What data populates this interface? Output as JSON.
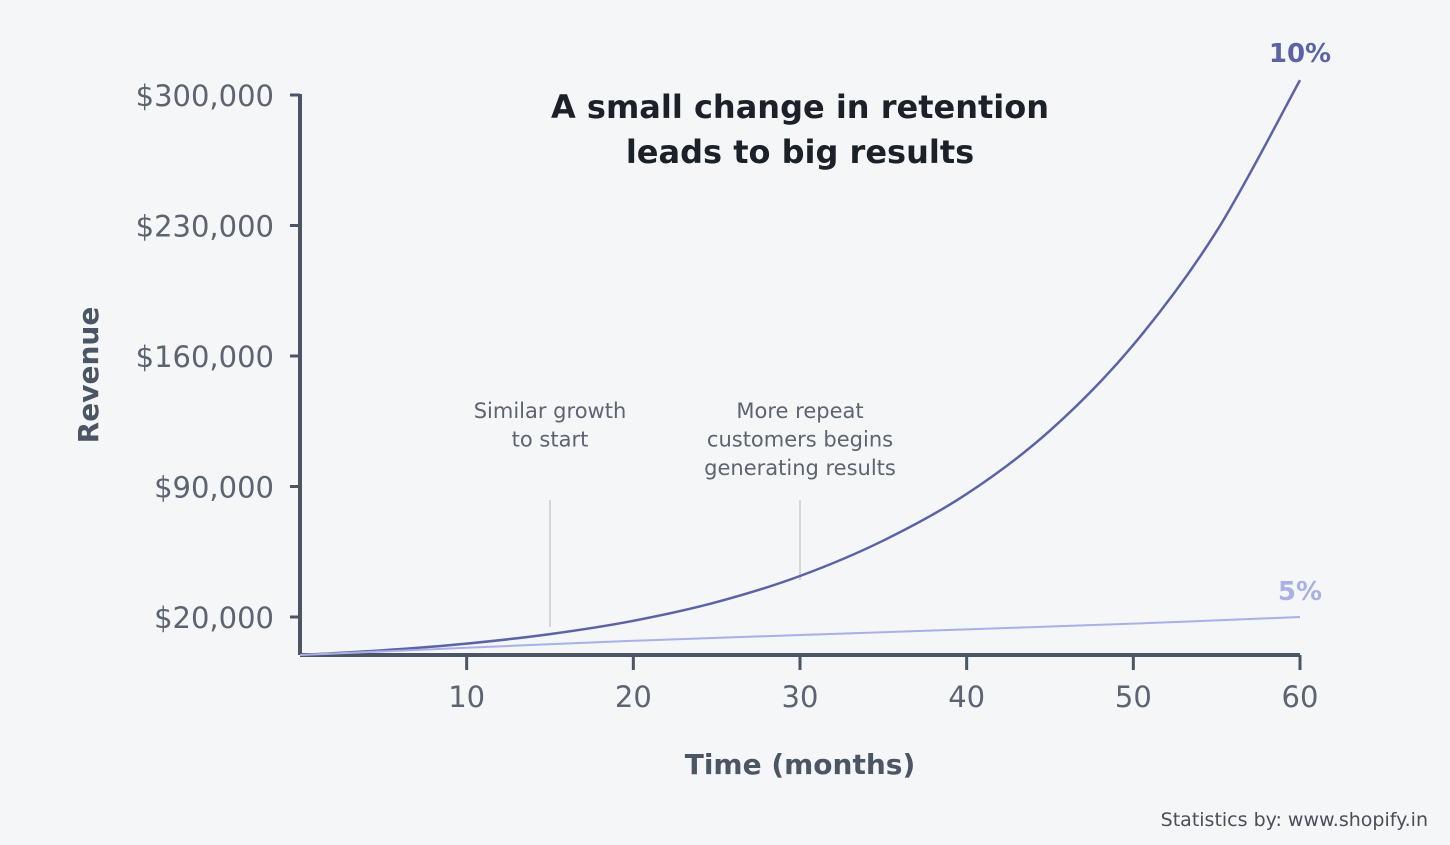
{
  "chart_data": {
    "type": "line",
    "title_lines": [
      "A small change in retention",
      "leads to big results"
    ],
    "xlabel": "Time (months)",
    "ylabel": "Revenue",
    "x_ticks": [
      10,
      20,
      30,
      40,
      50,
      60
    ],
    "y_ticks": [
      20000,
      90000,
      160000,
      230000,
      300000
    ],
    "y_tick_labels": [
      "$20,000",
      "$90,000",
      "$160,000",
      "$230,000",
      "$300,000"
    ],
    "xlim": [
      0,
      60
    ],
    "ylim": [
      0,
      300000
    ],
    "grid": false,
    "series": [
      {
        "name": "10%",
        "color": "#5b62a6",
        "x": [
          0,
          5,
          10,
          15,
          20,
          25,
          30,
          35,
          40,
          45,
          50,
          55,
          60
        ],
        "y": [
          0,
          2500,
          6000,
          11000,
          18000,
          28000,
          42000,
          61000,
          86000,
          120000,
          166000,
          227000,
          308000
        ]
      },
      {
        "name": "5%",
        "color": "#aab0e6",
        "x": [
          0,
          10,
          20,
          30,
          40,
          50,
          60
        ],
        "y": [
          0,
          3800,
          7500,
          10500,
          13500,
          16500,
          20000
        ]
      }
    ],
    "annotations": [
      {
        "lines": [
          "Similar growth",
          "to start"
        ],
        "x": 15
      },
      {
        "lines": [
          "More repeat",
          "customers begins",
          "generating results"
        ],
        "x": 30
      }
    ]
  },
  "source_note": "Statistics by: www.shopify.in",
  "colors": {
    "axis": "#4c5564",
    "tick_text": "#5d6470",
    "title": "#1c2028",
    "annotation_text": "#5d6470",
    "annotation_line": "#c9ccd2",
    "background": "#f4f6f8"
  }
}
